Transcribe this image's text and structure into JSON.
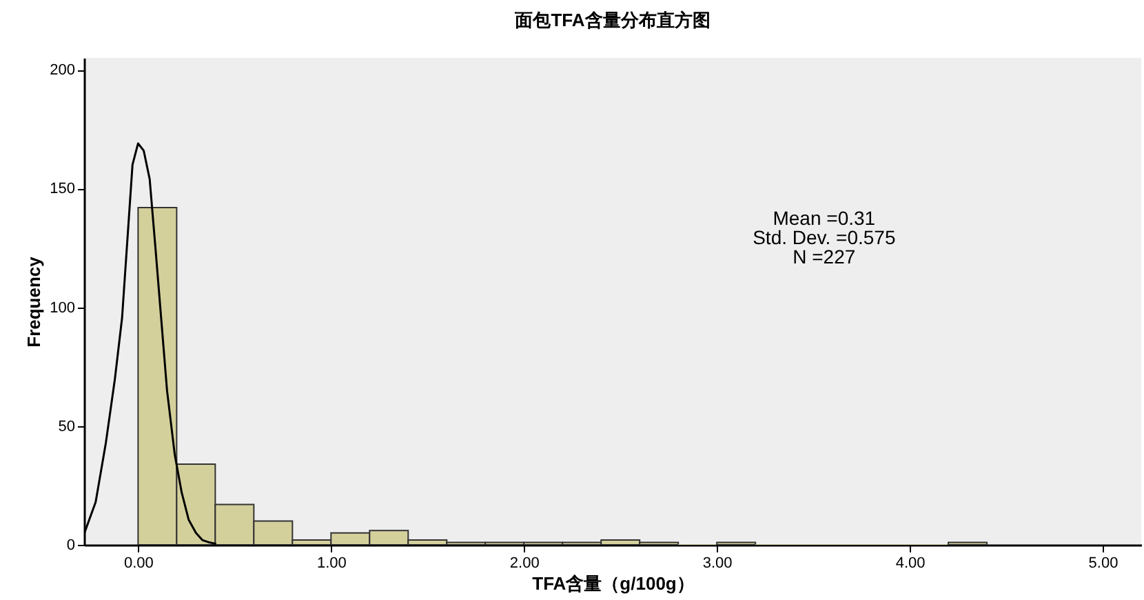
{
  "chart_data": {
    "type": "histogram",
    "title": "面包TFA含量分布直方图",
    "xlabel": "TFA含量（g/100g）",
    "ylabel": "Frequency",
    "bins": [
      0,
      0.2,
      0.4,
      0.6,
      0.8,
      1.0,
      1.2,
      1.4,
      1.6,
      1.8,
      2.0,
      2.2,
      2.4,
      2.6,
      2.8,
      3.0,
      3.2,
      3.4,
      3.6,
      3.8,
      4.0,
      4.2,
      4.4
    ],
    "values": [
      142,
      34,
      17,
      10,
      2,
      5,
      6,
      2,
      1,
      1,
      1,
      1,
      2,
      1,
      0,
      1,
      0,
      0,
      0,
      0,
      0,
      1
    ],
    "color": "#d4d09c",
    "series": [
      {
        "type": "line",
        "color": "#000000",
        "x": [
          -0.279,
          -0.22,
          -0.167,
          -0.12,
          -0.083,
          -0.05,
          -0.029,
          0,
          0.029,
          0.06,
          0.09,
          0.119,
          0.15,
          0.19,
          0.226,
          0.262,
          0.3,
          0.333,
          0.37,
          0.405
        ],
        "values": [
          4.8,
          18,
          43,
          70,
          95.6,
          135,
          160,
          169,
          166,
          154,
          125,
          96,
          65,
          38,
          22,
          10.6,
          5,
          2,
          1,
          0.4
        ]
      }
    ],
    "xlim": [
      -0.28,
      5.2
    ],
    "ylim": [
      0,
      205
    ],
    "xticks": [
      {
        "value": 0,
        "label": "0.00"
      },
      {
        "value": 1,
        "label": "1.00"
      },
      {
        "value": 2,
        "label": "2.00"
      },
      {
        "value": 3,
        "label": "3.00"
      },
      {
        "value": 4,
        "label": "4.00"
      },
      {
        "value": 5,
        "label": "5.00"
      }
    ],
    "yticks": [
      0,
      50,
      100,
      150,
      200
    ],
    "annotations": [
      "Mean =0.31",
      "Std. Dev. =0.575",
      "N =227"
    ]
  }
}
